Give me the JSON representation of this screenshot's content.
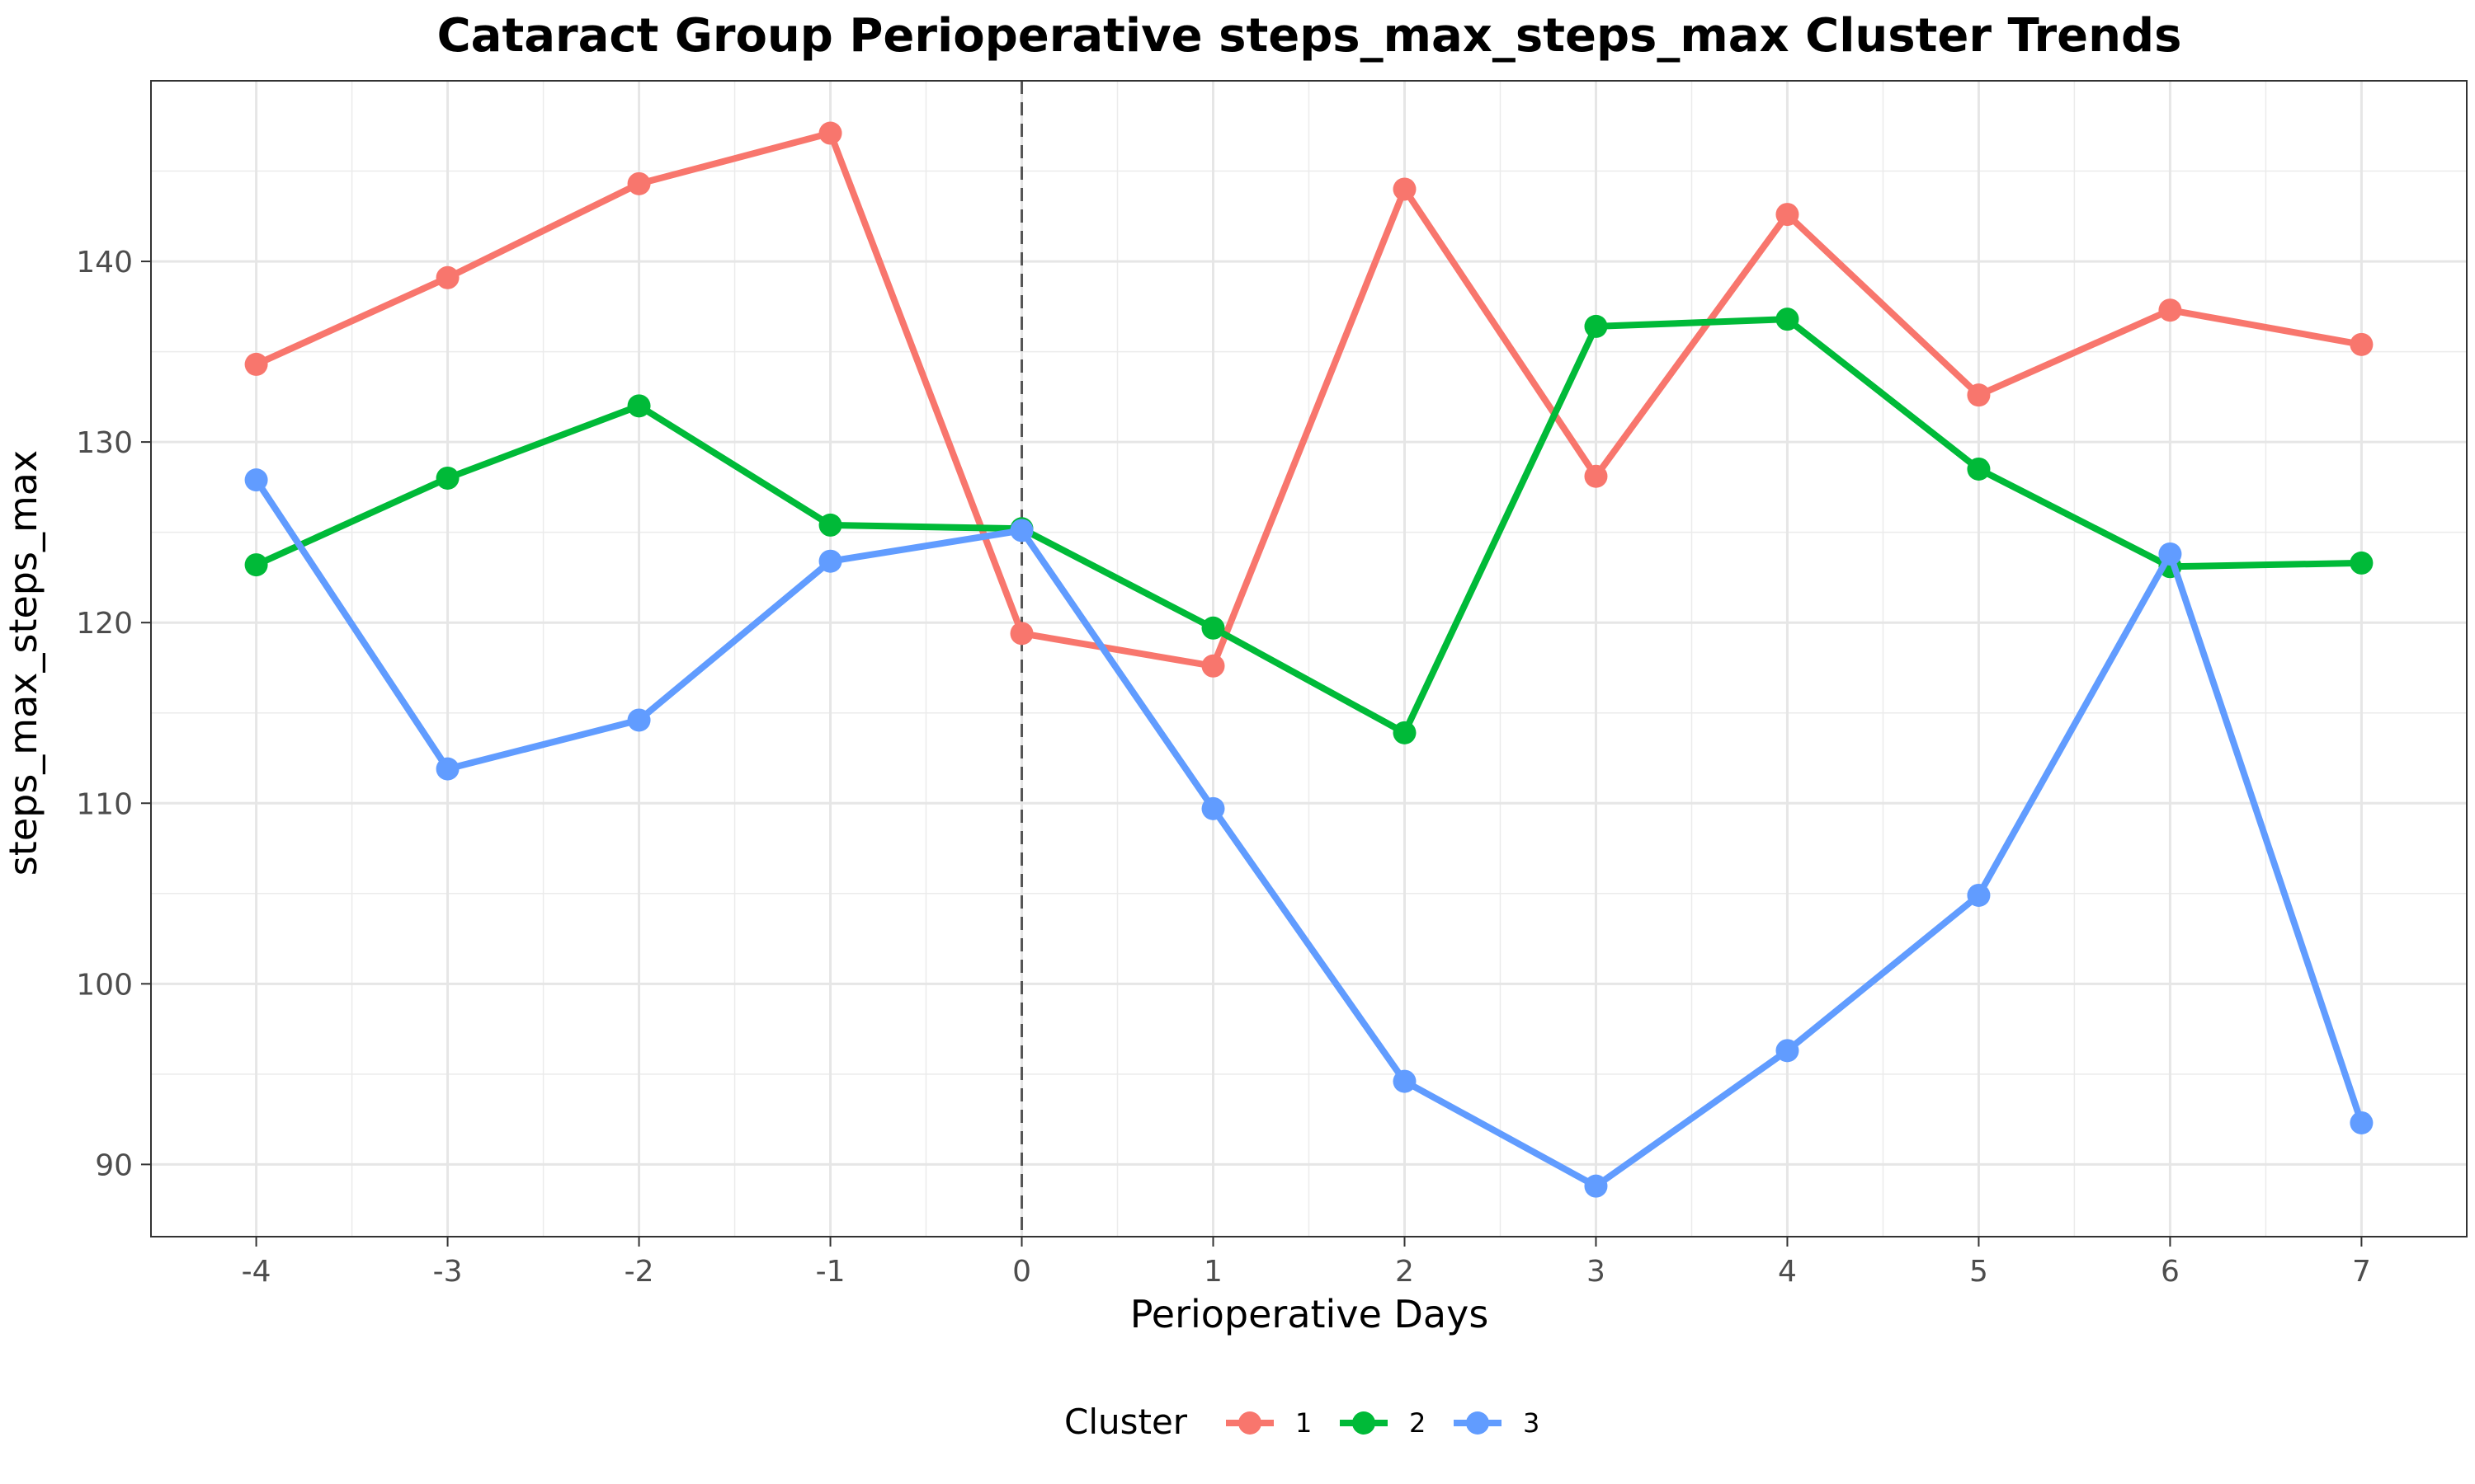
{
  "chart_data": {
    "type": "line",
    "title": "Cataract Group Perioperative steps_max_steps_max Cluster Trends",
    "xlabel": "Perioperative Days",
    "ylabel": "steps_max_steps_max",
    "x": [
      -4,
      -3,
      -2,
      -1,
      0,
      1,
      2,
      3,
      4,
      5,
      6,
      7
    ],
    "x_tick_labels": [
      "-4",
      "-3",
      "-2",
      "-1",
      "0",
      "1",
      "2",
      "3",
      "4",
      "5",
      "6",
      "7"
    ],
    "y_ticks": [
      90,
      100,
      110,
      120,
      130,
      140
    ],
    "y_tick_labels": [
      "90",
      "100",
      "110",
      "120",
      "130",
      "140"
    ],
    "xlim": [
      -4.55,
      7.55
    ],
    "ylim": [
      86,
      150
    ],
    "grid": true,
    "reference_line": {
      "x": 0,
      "style": "dashed",
      "color": "#555555"
    },
    "legend": {
      "title": "Cluster",
      "position": "bottom"
    },
    "series": [
      {
        "name": "1",
        "color": "#F8766D",
        "values": [
          134.3,
          139.1,
          144.3,
          147.1,
          119.4,
          117.6,
          144.0,
          128.1,
          142.6,
          132.6,
          137.3,
          135.4
        ]
      },
      {
        "name": "2",
        "color": "#00BA38",
        "values": [
          123.2,
          128.0,
          132.0,
          125.4,
          125.2,
          119.7,
          113.9,
          136.4,
          136.8,
          128.5,
          123.1,
          123.3
        ]
      },
      {
        "name": "3",
        "color": "#619CFF",
        "values": [
          127.9,
          111.9,
          114.6,
          123.4,
          125.1,
          109.7,
          94.6,
          88.8,
          96.3,
          104.9,
          123.8,
          92.3
        ]
      }
    ]
  }
}
